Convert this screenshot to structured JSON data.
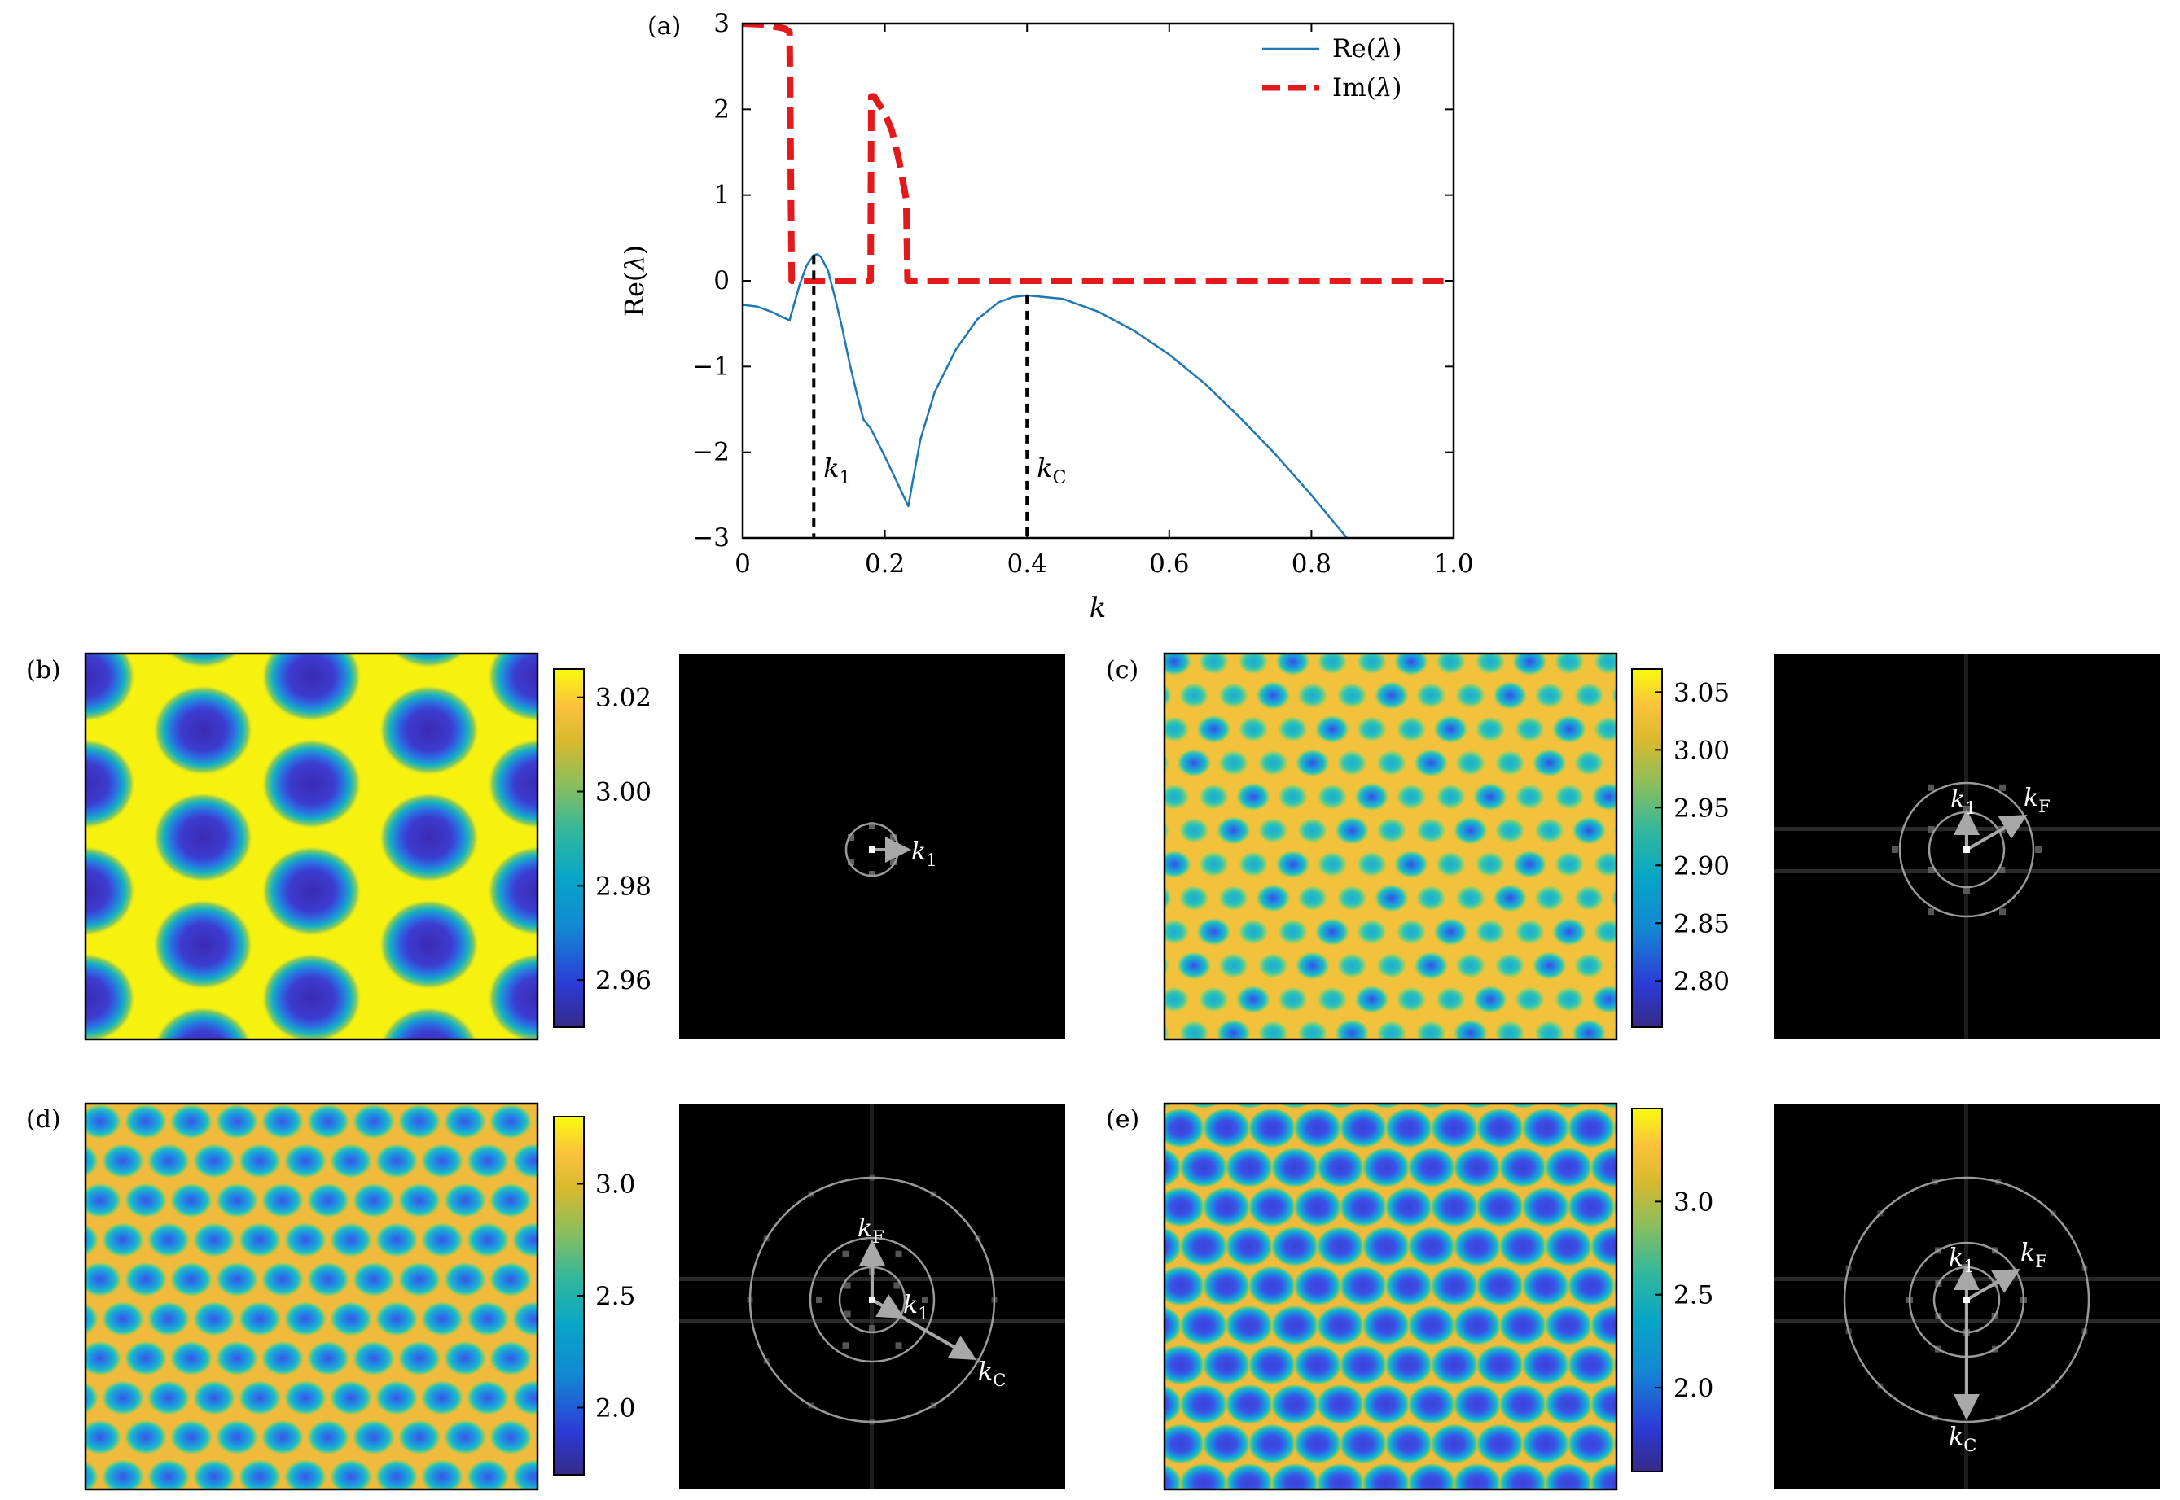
{
  "chart_data": [
    {
      "type": "line",
      "panel": "(a)",
      "xlabel": "k",
      "ylabel": "Re(λ)",
      "xlim": [
        0,
        1.0
      ],
      "ylim": [
        -3,
        3
      ],
      "xticks": [
        0,
        0.2,
        0.4,
        0.6,
        0.8,
        1.0
      ],
      "xtick_labels": [
        "0",
        "0.2",
        "0.4",
        "0.6",
        "0.8",
        "1.0"
      ],
      "yticks": [
        3,
        2,
        1,
        0,
        -1,
        -2,
        -3
      ],
      "ytick_labels": [
        "3",
        "2",
        "1",
        "0",
        "−1",
        "−2",
        "−3"
      ],
      "legend": "top-right",
      "series": [
        {
          "name": "Re(λ)",
          "color": "#1f77b4",
          "style": "solid",
          "x": [
            0,
            0.02,
            0.04,
            0.055,
            0.066,
            0.072,
            0.08,
            0.09,
            0.1,
            0.105,
            0.11,
            0.12,
            0.13,
            0.14,
            0.15,
            0.16,
            0.17,
            0.18,
            0.2,
            0.22,
            0.233,
            0.24,
            0.25,
            0.27,
            0.3,
            0.33,
            0.36,
            0.38,
            0.4,
            0.45,
            0.5,
            0.55,
            0.6,
            0.65,
            0.7,
            0.75,
            0.8,
            0.85
          ],
          "y": [
            -0.28,
            -0.3,
            -0.36,
            -0.42,
            -0.46,
            -0.28,
            -0.05,
            0.18,
            0.3,
            0.31,
            0.28,
            0.12,
            -0.2,
            -0.55,
            -0.95,
            -1.3,
            -1.62,
            -1.72,
            -2.05,
            -2.4,
            -2.63,
            -2.3,
            -1.85,
            -1.3,
            -0.8,
            -0.45,
            -0.25,
            -0.19,
            -0.17,
            -0.21,
            -0.36,
            -0.58,
            -0.86,
            -1.2,
            -1.6,
            -2.03,
            -2.5,
            -3.0
          ]
        },
        {
          "name": "Im(λ)",
          "color": "#e31a1c",
          "style": "dashed",
          "x": [
            0,
            0.03,
            0.06,
            0.066,
            0.069,
            0.18,
            0.181,
            0.185,
            0.2,
            0.21,
            0.22,
            0.23,
            0.232,
            1.0
          ],
          "y": [
            3.0,
            2.99,
            2.94,
            2.9,
            0.0,
            0.0,
            2.15,
            2.15,
            1.95,
            1.75,
            1.4,
            0.95,
            0.0,
            0.0
          ]
        }
      ],
      "vlines": [
        {
          "x": 0.1,
          "y_top": 0.3,
          "label": "k1"
        },
        {
          "x": 0.4,
          "y_top": -0.17,
          "label": "kC"
        }
      ]
    },
    {
      "type": "heatmap",
      "panel": "(b)",
      "colorbar_ticks": [
        "3.02",
        "3.00",
        "2.98",
        "2.96"
      ],
      "colorbar_range": [
        2.95,
        3.026
      ],
      "fft_labels": [
        "k1"
      ]
    },
    {
      "type": "heatmap",
      "panel": "(c)",
      "colorbar_ticks": [
        "3.05",
        "3.00",
        "2.95",
        "2.90",
        "2.85",
        "2.80"
      ],
      "colorbar_range": [
        2.76,
        3.07
      ],
      "fft_labels": [
        "k1",
        "kF"
      ]
    },
    {
      "type": "heatmap",
      "panel": "(d)",
      "colorbar_ticks": [
        "3.0",
        "2.5",
        "2.0"
      ],
      "colorbar_range": [
        1.7,
        3.3
      ],
      "fft_labels": [
        "kF",
        "k1",
        "kC"
      ]
    },
    {
      "type": "heatmap",
      "panel": "(e)",
      "colorbar_ticks": [
        "3.0",
        "2.5",
        "2.0"
      ],
      "colorbar_range": [
        1.55,
        3.5
      ],
      "fft_labels": [
        "k1",
        "kF",
        "kC"
      ]
    }
  ],
  "colors": {
    "re_line": "#1f77b4",
    "im_line": "#e31a1c",
    "vline": "#000000",
    "fft_bg": "#000000",
    "fft_ring": "#9a9a9a",
    "fft_arrow": "#a8a8a8",
    "viridis_low": "#440154",
    "viridis_high": "#fde725"
  }
}
